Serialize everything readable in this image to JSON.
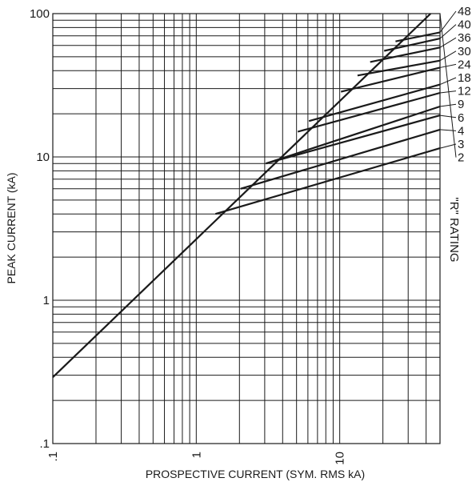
{
  "chart_data": {
    "type": "line",
    "title": "",
    "xlabel": "PROSPECTIVE CURRENT (SYM. RMS kA)",
    "ylabel": "PEAK CURRENT (kA)",
    "side_label": "\"R\" RATING",
    "x_scale": "log",
    "y_scale": "log",
    "xlim": [
      0.1,
      50
    ],
    "ylim": [
      0.1,
      100
    ],
    "grid": true,
    "x_ticks": [
      {
        "value": 0.1,
        "label": ".1"
      },
      {
        "value": 1,
        "label": "1"
      },
      {
        "value": 10,
        "label": "10"
      }
    ],
    "y_ticks": [
      {
        "value": 0.1,
        "label": ".1"
      },
      {
        "value": 1,
        "label": "1"
      },
      {
        "value": 10,
        "label": "10"
      },
      {
        "value": 100,
        "label": "100"
      }
    ],
    "series": [
      {
        "x": [
          0.1,
          43
        ],
        "y": [
          0.29,
          100
        ]
      },
      {
        "x": [
          1.36,
          50
        ],
        "y": [
          4.0,
          11.5
        ]
      },
      {
        "x": [
          2.04,
          50
        ],
        "y": [
          6.0,
          15.5
        ]
      },
      {
        "x": [
          3.06,
          50
        ],
        "y": [
          9.0,
          19.5
        ]
      },
      {
        "x": [
          3.06,
          50
        ],
        "y": [
          9.0,
          22.5
        ]
      },
      {
        "x": [
          5.1,
          50
        ],
        "y": [
          15.0,
          28.0
        ]
      },
      {
        "x": [
          6.1,
          50
        ],
        "y": [
          17.8,
          32.0
        ]
      },
      {
        "x": [
          10.2,
          50
        ],
        "y": [
          28.5,
          42.0
        ]
      },
      {
        "x": [
          13.3,
          50
        ],
        "y": [
          37.0,
          47.0
        ]
      },
      {
        "x": [
          16.3,
          50
        ],
        "y": [
          46.0,
          58.0
        ]
      },
      {
        "x": [
          20.4,
          50
        ],
        "y": [
          55.0,
          67.0
        ]
      },
      {
        "x": [
          24.5,
          50
        ],
        "y": [
          64.0,
          74.0
        ]
      }
    ],
    "rating_labels": [
      "48",
      "40",
      "36",
      "30",
      "24",
      "18",
      "12",
      "9",
      "6",
      "4",
      "3",
      "2"
    ]
  }
}
